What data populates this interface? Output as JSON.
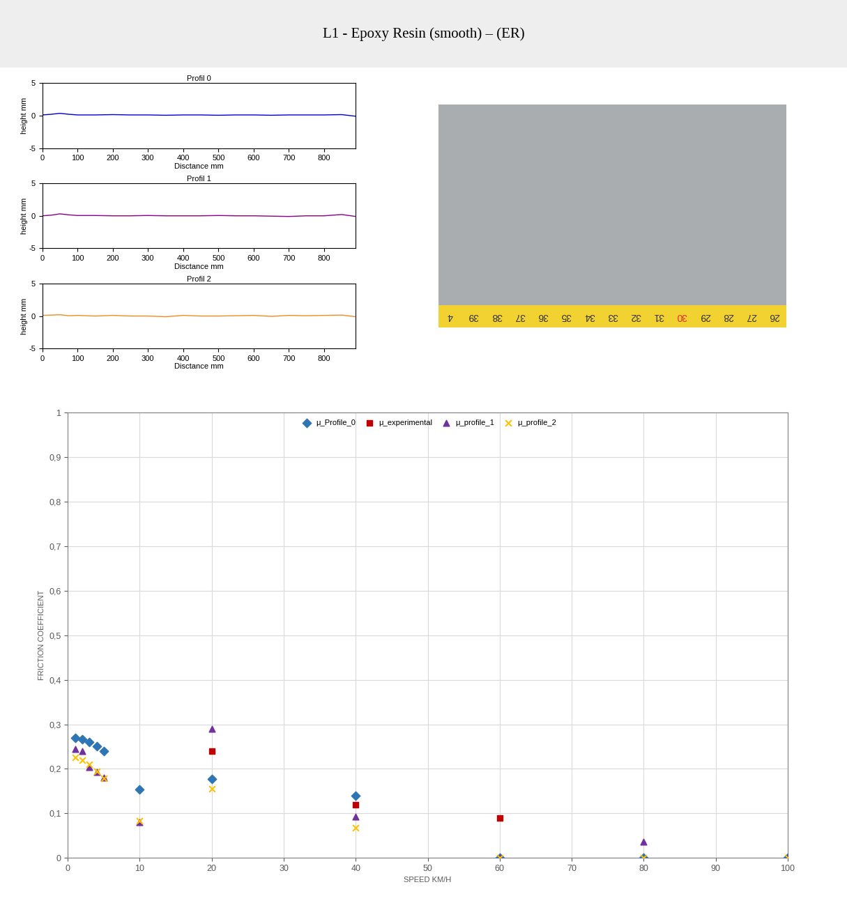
{
  "header": {
    "title": "L1 - Epoxy Resin (smooth) – (ER)"
  },
  "photo": {
    "ruler_labels": [
      "4",
      "39",
      "38",
      "37",
      "36",
      "35",
      "34",
      "33",
      "32",
      "31",
      "30",
      "29",
      "28",
      "27",
      "26"
    ],
    "highlight_label": "30"
  },
  "chart_data": [
    {
      "type": "line",
      "title": "Profil 0",
      "x_label": "Disctance mm",
      "y_label": "height mm",
      "xlim": [
        0,
        890
      ],
      "xticks": [
        0,
        100,
        200,
        300,
        400,
        500,
        600,
        700,
        800
      ],
      "ylim": [
        -5,
        5
      ],
      "yticks": [
        -5,
        0,
        5
      ],
      "grid": false,
      "x": [
        0,
        25,
        50,
        75,
        100,
        150,
        200,
        250,
        300,
        350,
        400,
        450,
        500,
        550,
        600,
        650,
        700,
        750,
        800,
        850,
        890
      ],
      "series": [
        {
          "color": "#0000cc",
          "values": [
            0.1,
            0.2,
            0.35,
            0.2,
            0.1,
            0.1,
            0.15,
            0.1,
            0.1,
            0.05,
            0.1,
            0.1,
            0.05,
            0.1,
            0.1,
            0.05,
            0.1,
            0.1,
            0.1,
            0.15,
            -0.1
          ]
        }
      ]
    },
    {
      "type": "line",
      "title": "Profil 1",
      "x_label": "Disctance mm",
      "y_label": "height mm",
      "xlim": [
        0,
        890
      ],
      "xticks": [
        0,
        100,
        200,
        300,
        400,
        500,
        600,
        700,
        800
      ],
      "ylim": [
        -5,
        5
      ],
      "yticks": [
        -5,
        0,
        5
      ],
      "grid": false,
      "x": [
        0,
        25,
        50,
        75,
        100,
        150,
        200,
        250,
        300,
        350,
        400,
        450,
        500,
        550,
        600,
        650,
        700,
        750,
        800,
        850,
        890
      ],
      "series": [
        {
          "color": "#8b008b",
          "values": [
            0,
            0.1,
            0.3,
            0.15,
            0.05,
            0.05,
            0,
            0,
            0.05,
            0,
            0,
            0,
            0.05,
            0,
            0,
            -0.05,
            -0.1,
            0,
            0,
            0.2,
            -0.1
          ]
        }
      ]
    },
    {
      "type": "line",
      "title": "Profil 2",
      "x_label": "Disctance mm",
      "y_label": "height mm",
      "xlim": [
        0,
        890
      ],
      "xticks": [
        0,
        100,
        200,
        300,
        400,
        500,
        600,
        700,
        800
      ],
      "ylim": [
        -5,
        5
      ],
      "yticks": [
        -5,
        0,
        5
      ],
      "grid": false,
      "x": [
        0,
        25,
        50,
        75,
        100,
        150,
        200,
        250,
        300,
        350,
        400,
        450,
        500,
        550,
        600,
        650,
        700,
        750,
        800,
        850,
        890
      ],
      "series": [
        {
          "color": "#f08c1e",
          "values": [
            0.1,
            0.15,
            0.2,
            0.05,
            0.1,
            0,
            0.1,
            0,
            0,
            -0.1,
            0.1,
            0,
            0,
            0.05,
            0.1,
            -0.05,
            0.1,
            0.05,
            0.1,
            0.15,
            -0.1
          ]
        }
      ]
    },
    {
      "type": "scatter",
      "x_label": "SPEED KM/H",
      "y_label": "FRICTION COEFFICIENT",
      "xlim": [
        0,
        100
      ],
      "xticks": [
        0,
        10,
        20,
        30,
        40,
        50,
        60,
        70,
        80,
        90,
        100
      ],
      "ylim": [
        0,
        1
      ],
      "yticks": [
        0,
        {
          "value": 0.1,
          "label": "0,1"
        },
        {
          "value": 0.2,
          "label": "0,2"
        },
        {
          "value": 0.3,
          "label": "0,3"
        },
        {
          "value": 0.4,
          "label": "0,4"
        },
        {
          "value": 0.5,
          "label": "0,5"
        },
        {
          "value": 0.6,
          "label": "0,6"
        },
        {
          "value": 0.7,
          "label": "0,7"
        },
        {
          "value": 0.8,
          "label": "0,8"
        },
        {
          "value": 0.9,
          "label": "0,9"
        },
        1
      ],
      "grid": true,
      "legend": "upper center",
      "series": [
        {
          "name": "μ_Profile_0",
          "color": "#2e75b6",
          "marker": "diamond",
          "x": [
            1,
            2,
            3,
            4,
            5,
            10,
            20,
            40,
            60,
            80,
            100
          ],
          "values": [
            0.27,
            0.267,
            0.26,
            0.25,
            0.24,
            0.153,
            0.177,
            0.14,
            0,
            0,
            0
          ]
        },
        {
          "name": "μ_experimental",
          "color": "#c00000",
          "marker": "square",
          "x": [
            20,
            40,
            60
          ],
          "values": [
            0.24,
            0.12,
            0.09
          ]
        },
        {
          "name": "μ_profile_1",
          "color": "#7030a0",
          "marker": "triangle",
          "x": [
            1,
            2,
            3,
            4,
            5,
            10,
            20,
            40,
            60,
            80,
            100
          ],
          "values": [
            0.245,
            0.24,
            0.203,
            0.193,
            0.18,
            0.08,
            0.29,
            0.092,
            0,
            0.037,
            0
          ]
        },
        {
          "name": "μ_profile_2",
          "color": "#ffc000",
          "marker": "x",
          "x": [
            1,
            2,
            3,
            4,
            5,
            10,
            20,
            40,
            60,
            80,
            100
          ],
          "values": [
            0.225,
            0.22,
            0.21,
            0.195,
            0.178,
            0.083,
            0.155,
            0.068,
            0,
            0,
            0
          ]
        }
      ]
    }
  ]
}
